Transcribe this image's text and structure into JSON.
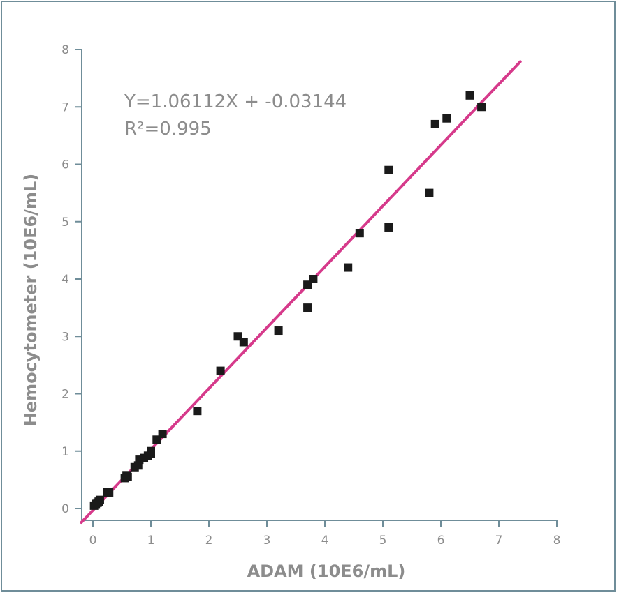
{
  "chart_data": {
    "type": "scatter",
    "title": "",
    "xlabel": "ADAM (10E6/mL)",
    "ylabel": "Hemocytometer (10E6/mL)",
    "xlim": [
      0,
      8
    ],
    "ylim": [
      0,
      8
    ],
    "xticks": [
      "0",
      "1",
      "2",
      "3",
      "4",
      "5",
      "6",
      "7",
      "8"
    ],
    "yticks": [
      "0",
      "1",
      "2",
      "3",
      "4",
      "5",
      "6",
      "7",
      "8"
    ],
    "grid": false,
    "annotations": {
      "equation": "Y=1.06112X + -0.03144",
      "r_squared": "R²=0.995"
    },
    "series": [
      {
        "color": "#1a1a1a",
        "marker": "square",
        "points": [
          [
            0.02,
            0.05
          ],
          [
            0.05,
            0.08
          ],
          [
            0.08,
            0.1
          ],
          [
            0.1,
            0.12
          ],
          [
            0.12,
            0.15
          ],
          [
            0.25,
            0.28
          ],
          [
            0.28,
            0.28
          ],
          [
            0.55,
            0.53
          ],
          [
            0.58,
            0.58
          ],
          [
            0.6,
            0.55
          ],
          [
            0.72,
            0.72
          ],
          [
            0.78,
            0.75
          ],
          [
            0.8,
            0.85
          ],
          [
            0.88,
            0.88
          ],
          [
            0.95,
            0.92
          ],
          [
            1.0,
            0.95
          ],
          [
            1.0,
            1.0
          ],
          [
            1.1,
            1.2
          ],
          [
            1.2,
            1.3
          ],
          [
            1.8,
            1.7
          ],
          [
            2.2,
            2.4
          ],
          [
            2.5,
            3.0
          ],
          [
            2.6,
            2.9
          ],
          [
            3.2,
            3.1
          ],
          [
            3.7,
            3.5
          ],
          [
            3.7,
            3.9
          ],
          [
            3.8,
            4.0
          ],
          [
            4.4,
            4.2
          ],
          [
            4.6,
            4.8
          ],
          [
            5.1,
            4.9
          ],
          [
            5.1,
            5.9
          ],
          [
            5.8,
            5.5
          ],
          [
            5.9,
            6.7
          ],
          [
            6.1,
            6.8
          ],
          [
            6.5,
            7.2
          ],
          [
            6.7,
            7.0
          ]
        ]
      }
    ],
    "fit_line": {
      "color": "#d63a8b",
      "slope": 1.06112,
      "intercept": -0.03144,
      "x_range": [
        -0.2,
        7.37
      ]
    },
    "axis_color": "#6f8d99"
  }
}
